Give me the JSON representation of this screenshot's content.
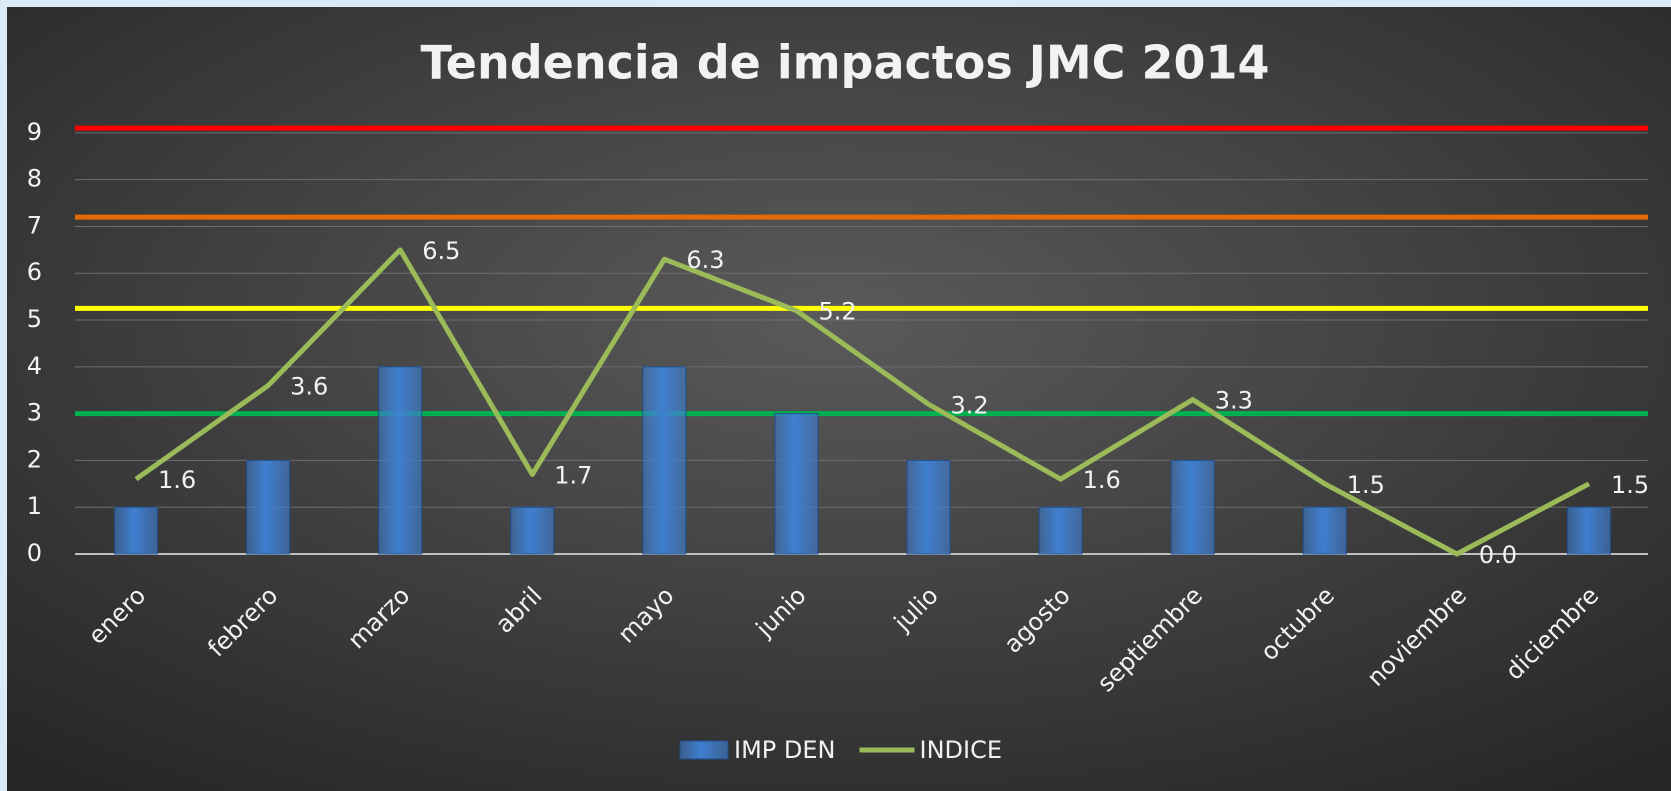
{
  "chart_data": {
    "type": "bar-line",
    "title": "Tendencia de impactos JMC 2014",
    "categories": [
      "enero",
      "febrero",
      "marzo",
      "abril",
      "mayo",
      "junio",
      "julio",
      "agosto",
      "septiembre",
      "octubre",
      "noviembre",
      "diciembre"
    ],
    "series": [
      {
        "name": "IMP DEN",
        "type": "bar",
        "color": "#3f7fd0",
        "values": [
          1,
          2,
          4,
          1,
          4,
          3,
          2,
          1,
          2,
          1,
          0,
          1
        ]
      },
      {
        "name": "INDICE",
        "type": "line",
        "color": "#9bbb59",
        "values": [
          1.6,
          3.6,
          6.5,
          1.7,
          6.3,
          5.2,
          3.2,
          1.6,
          3.3,
          1.5,
          0.0,
          1.5
        ],
        "value_labels": [
          "1.6",
          "3.6",
          "6.5",
          "1.7",
          "6.3",
          "5.2",
          "3.2",
          "1.6",
          "3.3",
          "1.5",
          "0.0",
          "1.5"
        ]
      }
    ],
    "reference_lines": [
      {
        "value": 9.1,
        "color": "#ff0000"
      },
      {
        "value": 7.2,
        "color": "#e36c09"
      },
      {
        "value": 5.25,
        "color": "#ffff00"
      },
      {
        "value": 3,
        "color": "#00b050"
      }
    ],
    "ylim": [
      0,
      9.2
    ],
    "yticks": [
      0,
      1,
      2,
      3,
      4,
      5,
      6,
      7,
      8,
      9
    ],
    "grid": true,
    "legend": "bottom"
  }
}
